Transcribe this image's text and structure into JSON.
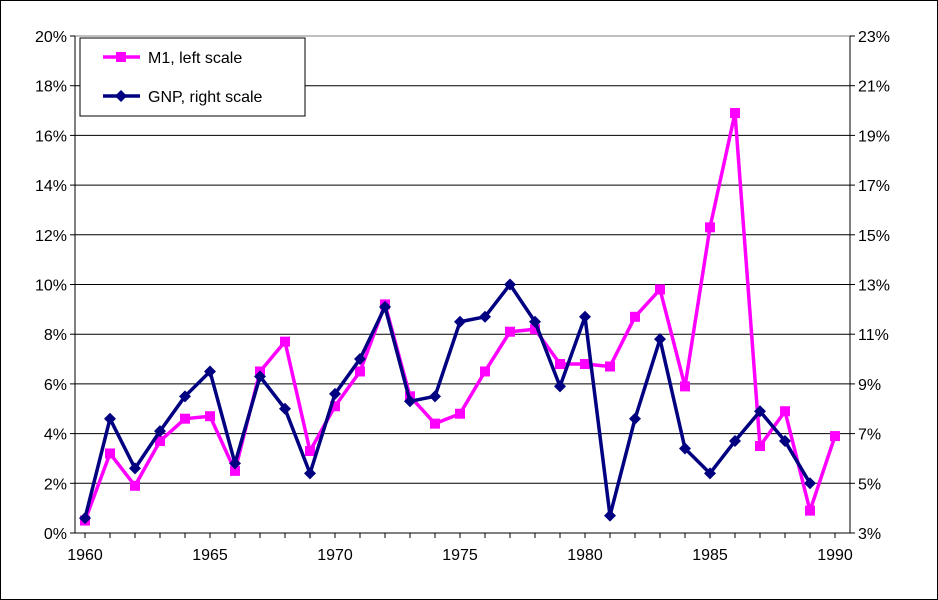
{
  "chart_data": {
    "type": "line",
    "title": "",
    "xlabel": "",
    "ylabel_left": "",
    "ylabel_right": "",
    "x": [
      1960,
      1961,
      1962,
      1963,
      1964,
      1965,
      1966,
      1967,
      1968,
      1969,
      1970,
      1971,
      1972,
      1973,
      1974,
      1975,
      1976,
      1977,
      1978,
      1979,
      1980,
      1981,
      1982,
      1983,
      1984,
      1985,
      1986,
      1987,
      1988,
      1989,
      1990
    ],
    "xlim": [
      1959.6,
      1990.6
    ],
    "x_ticks": [
      1960,
      1965,
      1970,
      1975,
      1980,
      1985,
      1990
    ],
    "x_tick_labels": [
      "1960",
      "1965",
      "1970",
      "1975",
      "1980",
      "1985",
      "1990"
    ],
    "y_left": {
      "ylim": [
        0,
        20
      ],
      "ticks": [
        0,
        2,
        4,
        6,
        8,
        10,
        12,
        14,
        16,
        18,
        20
      ],
      "tick_labels": [
        "0%",
        "2%",
        "4%",
        "6%",
        "8%",
        "10%",
        "12%",
        "14%",
        "16%",
        "18%",
        "20%"
      ]
    },
    "y_right": {
      "ylim": [
        3,
        23
      ],
      "ticks": [
        3,
        5,
        7,
        9,
        11,
        13,
        15,
        17,
        19,
        21,
        23
      ],
      "tick_labels": [
        "3%",
        "5%",
        "7%",
        "9%",
        "11%",
        "13%",
        "15%",
        "17%",
        "19%",
        "21%",
        "23%"
      ]
    },
    "grid": true,
    "legend": {
      "placement": "top-left"
    },
    "series": [
      {
        "name": "M1, left scale",
        "axis": "left",
        "color": "#FF00FF",
        "marker": "square",
        "values": [
          0.5,
          3.2,
          1.9,
          3.7,
          4.6,
          4.7,
          2.5,
          6.5,
          7.7,
          3.3,
          5.1,
          6.5,
          9.2,
          5.5,
          4.4,
          4.8,
          6.5,
          8.1,
          8.2,
          6.8,
          6.8,
          6.7,
          8.7,
          9.8,
          5.9,
          12.3,
          16.9,
          3.5,
          4.9,
          0.9,
          3.9
        ]
      },
      {
        "name": "GNP, right scale",
        "axis": "right",
        "color": "#000080",
        "marker": "diamond",
        "values": [
          3.6,
          7.6,
          5.6,
          7.1,
          8.5,
          9.5,
          5.8,
          9.3,
          8.0,
          5.4,
          8.6,
          10.0,
          12.1,
          8.3,
          8.5,
          11.5,
          11.7,
          13.0,
          11.5,
          8.9,
          11.7,
          3.7,
          7.6,
          10.8,
          6.4,
          5.4,
          6.7,
          7.9,
          6.7,
          5.0,
          null
        ]
      }
    ]
  }
}
